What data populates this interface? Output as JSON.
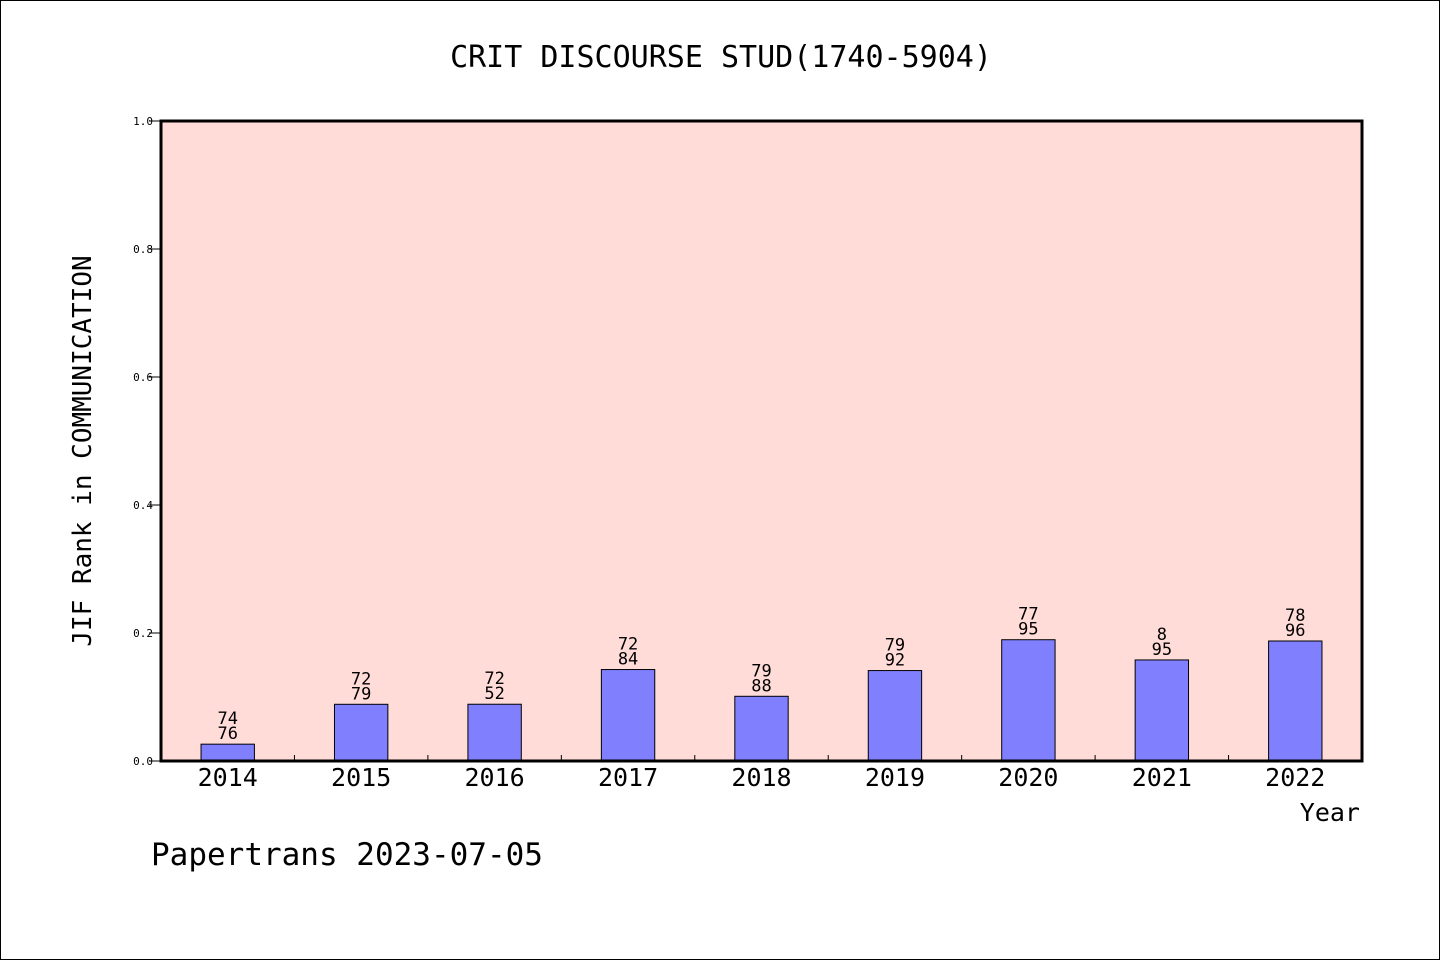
{
  "chart_data": {
    "type": "bar",
    "title": "CRIT DISCOURSE STUD(1740-5904)",
    "xlabel": "Year",
    "ylabel": "JIF Rank in COMMUNICATION",
    "ylim": [
      0,
      1.0
    ],
    "yticks": [
      "0.0",
      "0.2",
      "0.4",
      "0.6",
      "0.8",
      "1.0"
    ],
    "categories": [
      "2014",
      "2015",
      "2016",
      "2017",
      "2018",
      "2019",
      "2020",
      "2021",
      "2022"
    ],
    "values": [
      0.0263,
      0.0886,
      0.0887,
      0.1429,
      0.1011,
      0.1413,
      0.1895,
      0.1579,
      0.1875
    ],
    "bar_labels": [
      [
        "74",
        "76"
      ],
      [
        "72",
        "79"
      ],
      [
        "72",
        "52"
      ],
      [
        "72",
        "84"
      ],
      [
        "79",
        "88"
      ],
      [
        "79",
        "92"
      ],
      [
        "77",
        "95"
      ],
      [
        "8",
        "95"
      ],
      [
        "78",
        "96"
      ]
    ],
    "grid": false,
    "colors": {
      "plot_background": "#FFDCD8",
      "bar_fill": "#8080FF",
      "bar_edge": "#000000"
    }
  },
  "footer": {
    "text": "Papertrans 2023-07-05"
  }
}
